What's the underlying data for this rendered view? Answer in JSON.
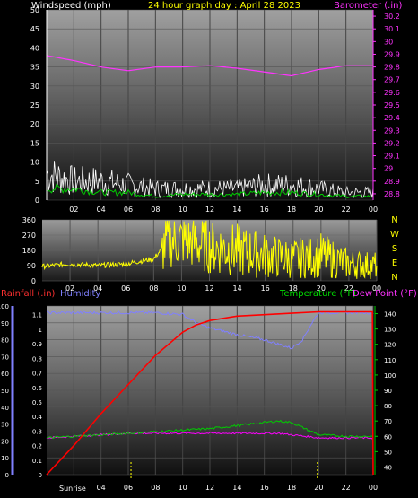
{
  "colors": {
    "background": "#000000",
    "wind": "#ffffff",
    "wind_avg": "#00cc00",
    "barometer": "#ff33ff",
    "direction": "#ffff00",
    "rain": "#ff0000",
    "humidity": "#8080ff",
    "temperature": "#00cc00",
    "dewpoint": "#ff00ff",
    "sun": "#ffff00"
  },
  "chart_data": [
    {
      "type": "line",
      "title": "24 hour graph day : April 28 2023",
      "xlabel": "",
      "x_ticks": [
        "02",
        "04",
        "06",
        "08",
        "10",
        "12",
        "14",
        "16",
        "18",
        "20",
        "22",
        "00"
      ],
      "left_axis": {
        "label": "Windspeed (mph)",
        "ticks": [
          "0",
          "5",
          "10",
          "15",
          "20",
          "25",
          "30",
          "35",
          "40",
          "45",
          "50"
        ],
        "ylim": [
          0,
          50
        ]
      },
      "right_axis": {
        "label": "Barometer (.in)",
        "ticks": [
          "28.8",
          "28.9",
          "29",
          "29.1",
          "29.2",
          "29.3",
          "29.4",
          "29.5",
          "29.6",
          "29.7",
          "29.8",
          "29.9",
          "30",
          "30.1",
          "30.2"
        ],
        "ylim": [
          28.75,
          30.25
        ]
      },
      "series": [
        {
          "name": "Windspeed (mph)",
          "axis": "left",
          "x_hours": [
            0,
            2,
            4,
            6,
            8,
            10,
            12,
            14,
            16,
            18,
            20,
            22,
            24
          ],
          "values": [
            7,
            5,
            5,
            4,
            3,
            3,
            3,
            3,
            4,
            4,
            3,
            2,
            2
          ]
        },
        {
          "name": "Windspeed (mph) average",
          "axis": "left",
          "x_hours": [
            0,
            2,
            4,
            6,
            8,
            10,
            12,
            14,
            16,
            18,
            20,
            22,
            24
          ],
          "values": [
            3,
            3,
            2,
            2,
            1,
            1.5,
            1.5,
            1.5,
            2,
            2,
            1.5,
            1,
            1
          ]
        },
        {
          "name": "Barometer (.in)",
          "axis": "right",
          "x_hours": [
            0,
            2,
            4,
            6,
            8,
            10,
            12,
            14,
            16,
            18,
            20,
            22,
            24
          ],
          "values": [
            29.89,
            29.85,
            29.8,
            29.77,
            29.8,
            29.8,
            29.81,
            29.79,
            29.76,
            29.73,
            29.78,
            29.81,
            29.81
          ]
        }
      ]
    },
    {
      "type": "line",
      "x_ticks": [
        "02",
        "04",
        "06",
        "08",
        "10",
        "12",
        "14",
        "16",
        "18",
        "20",
        "22",
        "00"
      ],
      "left_axis": {
        "ticks": [
          "0",
          "90",
          "180",
          "270",
          "360"
        ],
        "ylim": [
          0,
          360
        ]
      },
      "compass_labels": [
        "N",
        "W",
        "S",
        "E",
        "N"
      ],
      "series": [
        {
          "name": "Wind direction",
          "x_hours": [
            0,
            2,
            4,
            6,
            8,
            9,
            10,
            12,
            14,
            16,
            18,
            20,
            22,
            24
          ],
          "values": [
            85,
            100,
            90,
            100,
            130,
            230,
            240,
            200,
            180,
            150,
            130,
            150,
            100,
            90
          ]
        }
      ]
    },
    {
      "type": "line",
      "x_ticks": [
        "02",
        "04",
        "06",
        "08",
        "10",
        "12",
        "14",
        "16",
        "18",
        "20",
        "22",
        "00"
      ],
      "labels": {
        "rain": "Rainfall (.in)",
        "humidity": "Humidity",
        "temperature": "Temperature (°F)",
        "dewpoint": "Dew Point (°F)",
        "sunrise": "Sunrise"
      },
      "sun_markers": {
        "sunrise_hour": 6.2,
        "sunset_hour": 19.9
      },
      "rain_axis": {
        "ticks": [
          "0",
          "0.1",
          "0.2",
          "0.3",
          "0.4",
          "0.5",
          "0.6",
          "0.7",
          "0.8",
          "0.9",
          "1",
          "1.1"
        ],
        "ylim": [
          0,
          1.16
        ]
      },
      "humidity_axis": {
        "ticks": [
          "0",
          "10",
          "20",
          "30",
          "40",
          "50",
          "60",
          "70",
          "80",
          "90",
          "100"
        ],
        "ylim": [
          0,
          100
        ]
      },
      "temp_axis": {
        "ticks": [
          "40",
          "50",
          "60",
          "70",
          "80",
          "90",
          "100",
          "110",
          "120",
          "130",
          "140"
        ],
        "ylim": [
          35,
          145
        ]
      },
      "series": [
        {
          "name": "Rainfall (.in)",
          "axis": "rain",
          "x_hours": [
            0,
            2,
            4,
            6,
            8,
            10,
            11,
            12,
            14,
            16,
            18,
            20,
            22,
            23.95,
            24
          ],
          "values": [
            0,
            0.2,
            0.42,
            0.62,
            0.82,
            0.98,
            1.03,
            1.06,
            1.09,
            1.1,
            1.11,
            1.12,
            1.12,
            1.12,
            0
          ]
        },
        {
          "name": "Humidity",
          "axis": "humidity",
          "x_hours": [
            0,
            2,
            4,
            6,
            8,
            10,
            11,
            12,
            14,
            16,
            18,
            18.8,
            19.5,
            20,
            22,
            24
          ],
          "values": [
            96,
            96,
            96,
            96,
            96,
            95,
            90,
            87,
            83,
            80,
            75,
            80,
            90,
            96,
            96,
            96
          ]
        },
        {
          "name": "Temperature (°F)",
          "axis": "temp",
          "x_hours": [
            0,
            2,
            4,
            6,
            8,
            10,
            12,
            14,
            16,
            17,
            18,
            19,
            20,
            22,
            24
          ],
          "values": [
            59,
            60,
            61,
            62,
            63,
            64,
            65,
            67,
            69,
            70,
            69,
            65,
            61,
            60,
            60
          ]
        },
        {
          "name": "Dew Point (°F)",
          "axis": "temp",
          "x_hours": [
            0,
            2,
            4,
            6,
            8,
            10,
            12,
            14,
            16,
            17,
            18,
            19,
            20,
            22,
            24
          ],
          "values": [
            59,
            60,
            61,
            62,
            62,
            62,
            62,
            62,
            62,
            62,
            61,
            60,
            59,
            59,
            59
          ]
        }
      ]
    }
  ]
}
